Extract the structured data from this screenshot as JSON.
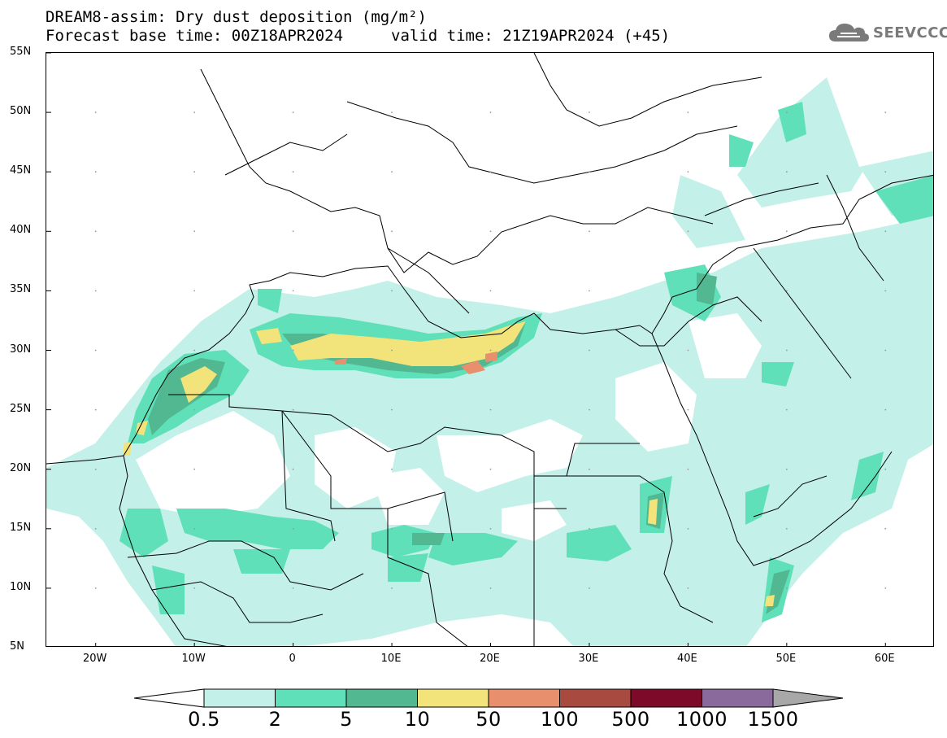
{
  "title_line1": "DREAM8-assim: Dry dust deposition (mg/m²)",
  "title_base": "Forecast base time: 00Z18APR2024",
  "title_valid": "valid time: 21Z19APR2024 (+45)",
  "logo": {
    "text": "SEEVCCC",
    "icon": "cloud-icon"
  },
  "map": {
    "lon_range": [
      -25,
      65
    ],
    "lat_range": [
      5,
      55
    ],
    "lat_ticks": [
      {
        "value": 55,
        "label": "55N"
      },
      {
        "value": 50,
        "label": "50N"
      },
      {
        "value": 45,
        "label": "45N"
      },
      {
        "value": 40,
        "label": "40N"
      },
      {
        "value": 35,
        "label": "35N"
      },
      {
        "value": 30,
        "label": "30N"
      },
      {
        "value": 25,
        "label": "25N"
      },
      {
        "value": 20,
        "label": "20N"
      },
      {
        "value": 15,
        "label": "15N"
      },
      {
        "value": 10,
        "label": "10N"
      },
      {
        "value": 5,
        "label": "5N"
      }
    ],
    "lon_ticks": [
      {
        "value": -20,
        "label": "20W"
      },
      {
        "value": -10,
        "label": "10W"
      },
      {
        "value": 0,
        "label": "0"
      },
      {
        "value": 10,
        "label": "10E"
      },
      {
        "value": 20,
        "label": "20E"
      },
      {
        "value": 30,
        "label": "30E"
      },
      {
        "value": 40,
        "label": "40E"
      },
      {
        "value": 50,
        "label": "50E"
      },
      {
        "value": 60,
        "label": "60E"
      }
    ]
  },
  "legend": {
    "thresholds": [
      "0.5",
      "2",
      "5",
      "10",
      "50",
      "100",
      "500",
      "1000",
      "1500"
    ],
    "colors": [
      "#c3f0e8",
      "#5fe0b8",
      "#52b892",
      "#f2e47a",
      "#e8906e",
      "#a84a40",
      "#7e0a2a",
      "#8a6a9c",
      "#a8a8a8"
    ],
    "lower_color": "#ffffff",
    "upper_color": "#a8a8a8"
  }
}
